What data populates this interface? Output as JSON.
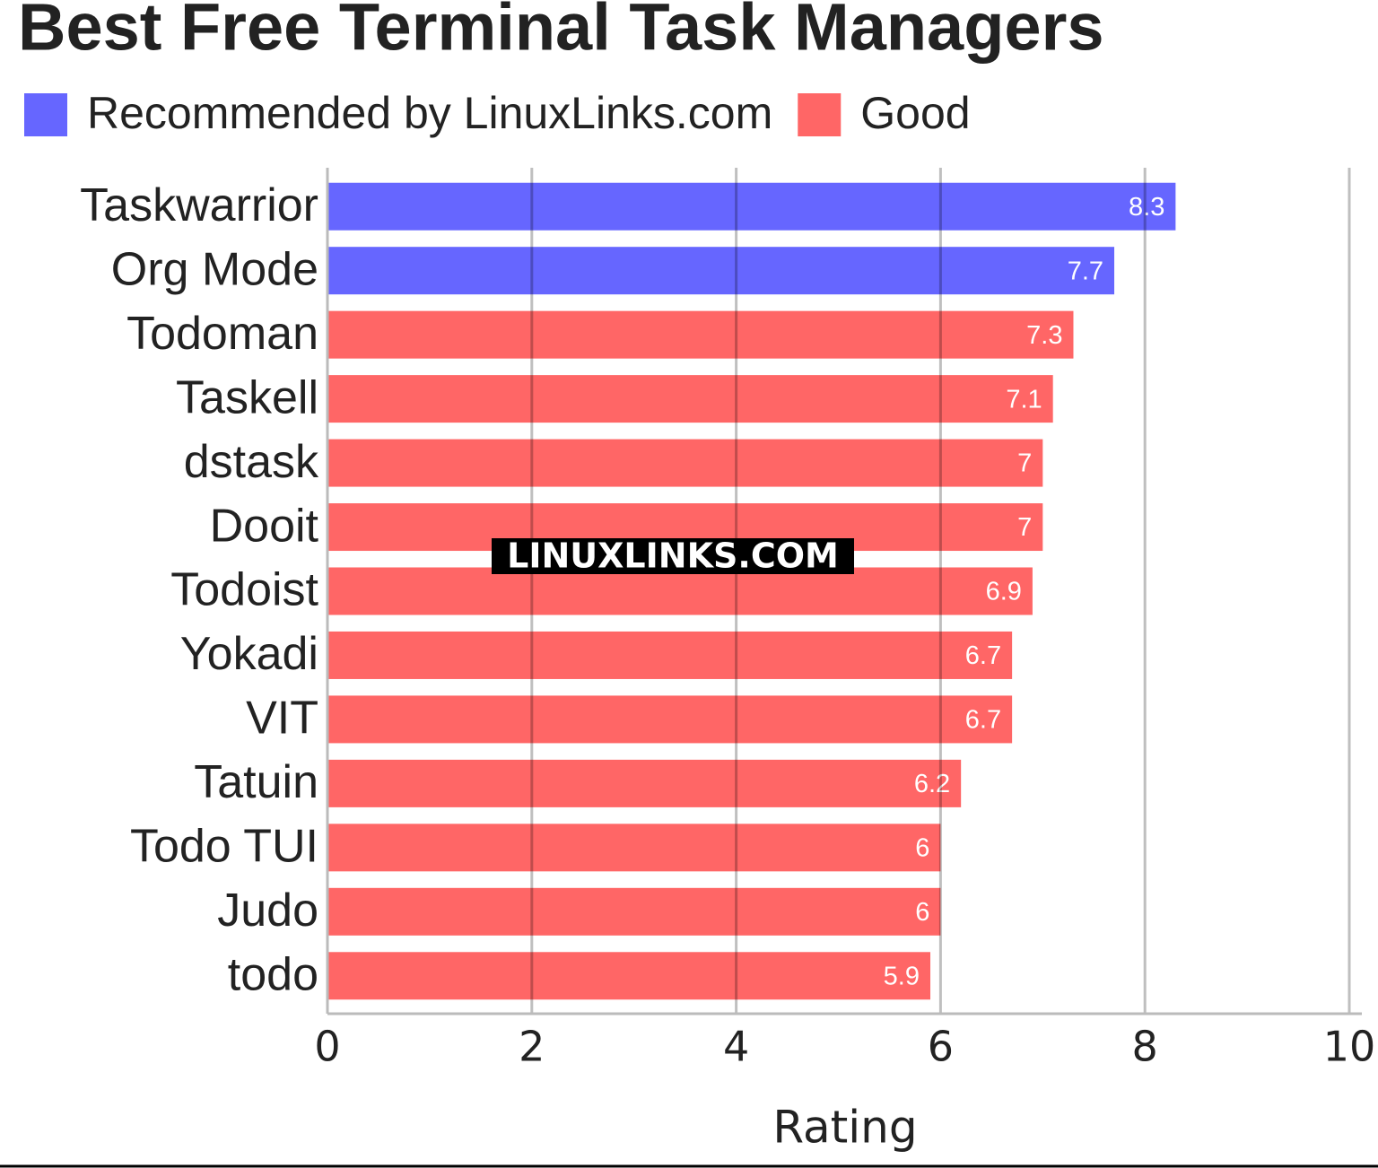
{
  "chart_data": {
    "type": "bar",
    "orientation": "horizontal",
    "title": "Best Free Terminal Task Managers",
    "x_label": "Rating",
    "annotation": "LINUXLINKS.COM",
    "categories": [
      "Taskwarrior",
      "Org Mode",
      "Todoman",
      "Taskell",
      "dstask",
      "Dooit",
      "Todoist",
      "Yokadi",
      "VIT",
      "Tatuin",
      "Todo TUI",
      "Judo",
      "todo"
    ],
    "series": [
      {
        "name": "Recommended by LinuxLinks.com",
        "color": "#6666ff",
        "values": [
          8.3,
          7.7,
          null,
          null,
          null,
          null,
          null,
          null,
          null,
          null,
          null,
          null,
          null
        ]
      },
      {
        "name": "Good",
        "color": "#ff6666",
        "values": [
          null,
          null,
          7.3,
          7.1,
          7,
          7,
          6.9,
          6.7,
          6.7,
          6.2,
          6,
          6,
          5.9
        ]
      }
    ],
    "xlim": [
      0,
      10
    ],
    "xticks": [
      0,
      2,
      4,
      6,
      8,
      10
    ],
    "grid": true,
    "legend": "top"
  }
}
